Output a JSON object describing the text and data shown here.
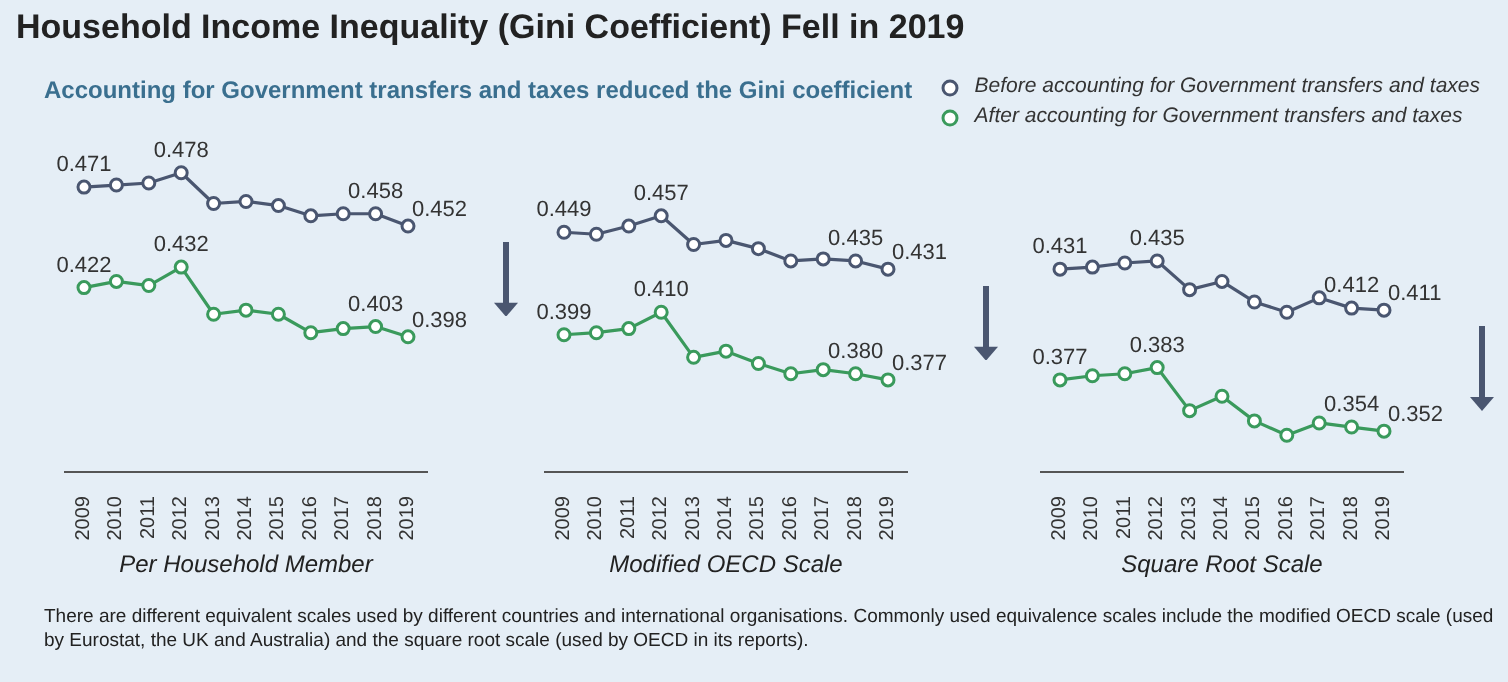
{
  "chart_data": [
    {
      "type": "line",
      "title": "Household Income Inequality (Gini Coefficient) Fell in 2019",
      "subtitle": "Accounting for Government transfers and taxes reduced the Gini coefficient",
      "legend": "top right",
      "marker": "circle",
      "tick_labels": "x",
      "xlabel": "Per Household Member",
      "annotations": [
        "There are different equivalent scales used by different countries and international organisations. Commonly used equivalence scales include the modified OECD scale (used by Eurostat, the UK and Australia) and the square root scale (used by OECD in its reports)."
      ],
      "categories": [
        "2009",
        "2010",
        "2011",
        "2012",
        "2013",
        "2014",
        "2015",
        "2016",
        "2017",
        "2018",
        "2019"
      ],
      "series": [
        {
          "name": "Before accounting for Government transfers and taxes",
          "color": "#4a5670",
          "values": [
            0.471,
            0.472,
            0.473,
            0.478,
            0.463,
            0.464,
            0.462,
            0.457,
            0.458,
            0.458,
            0.452
          ],
          "value_labels": [
            "0.471",
            null,
            null,
            "0.478",
            null,
            null,
            null,
            null,
            null,
            "0.458",
            "0.452"
          ]
        },
        {
          "name": "After accounting for Government transfers and taxes",
          "color": "#3a9a5c",
          "values": [
            0.422,
            0.425,
            0.423,
            0.432,
            0.409,
            0.411,
            0.409,
            0.4,
            0.402,
            0.403,
            0.398
          ],
          "value_labels": [
            "0.422",
            null,
            null,
            "0.432",
            null,
            null,
            null,
            null,
            null,
            "0.403",
            "0.398"
          ]
        }
      ]
    },
    {
      "type": "line",
      "marker": "circle",
      "tick_labels": "x",
      "xlabel": "Modified OECD Scale",
      "categories": [
        "2009",
        "2010",
        "2011",
        "2012",
        "2013",
        "2014",
        "2015",
        "2016",
        "2017",
        "2018",
        "2019"
      ],
      "series": [
        {
          "color": "#4a5670",
          "values": [
            0.449,
            0.448,
            0.452,
            0.457,
            0.443,
            0.445,
            0.441,
            0.435,
            0.436,
            0.435,
            0.431
          ],
          "value_labels": [
            "0.449",
            null,
            null,
            "0.457",
            null,
            null,
            null,
            null,
            null,
            "0.435",
            "0.431"
          ]
        },
        {
          "color": "#3a9a5c",
          "values": [
            0.399,
            0.4,
            0.402,
            0.41,
            0.388,
            0.391,
            0.385,
            0.38,
            0.382,
            0.38,
            0.377
          ],
          "value_labels": [
            "0.399",
            null,
            null,
            "0.410",
            null,
            null,
            null,
            null,
            null,
            "0.380",
            "0.377"
          ]
        }
      ]
    },
    {
      "type": "line",
      "marker": "circle",
      "tick_labels": "x",
      "xlabel": "Square Root Scale",
      "categories": [
        "2009",
        "2010",
        "2011",
        "2012",
        "2013",
        "2014",
        "2015",
        "2016",
        "2017",
        "2018",
        "2019"
      ],
      "series": [
        {
          "color": "#4a5670",
          "values": [
            0.431,
            0.432,
            0.434,
            0.435,
            0.421,
            0.425,
            0.415,
            0.41,
            0.417,
            0.412,
            0.411
          ],
          "value_labels": [
            "0.431",
            null,
            null,
            "0.435",
            null,
            null,
            null,
            null,
            null,
            "0.412",
            "0.411"
          ]
        },
        {
          "color": "#3a9a5c",
          "values": [
            0.377,
            0.379,
            0.38,
            0.383,
            0.362,
            0.369,
            0.357,
            0.35,
            0.356,
            0.354,
            0.352
          ],
          "value_labels": [
            "0.377",
            null,
            null,
            "0.383",
            null,
            null,
            null,
            null,
            null,
            "0.354",
            "0.352"
          ]
        }
      ]
    }
  ]
}
